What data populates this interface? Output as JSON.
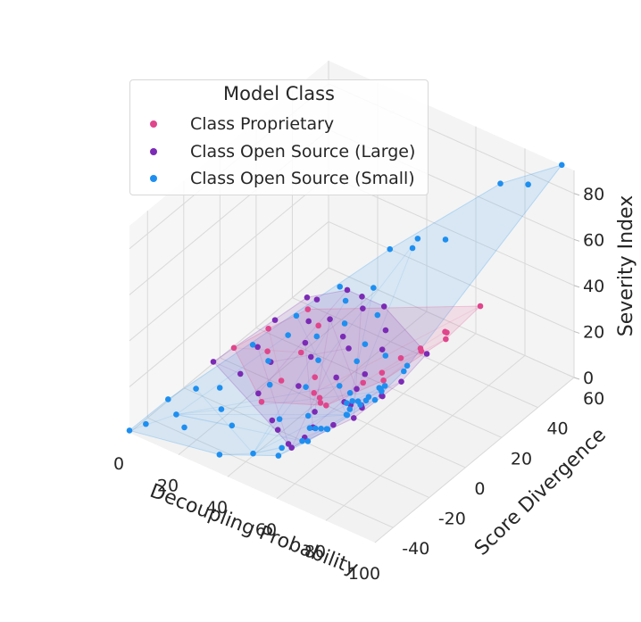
{
  "chart_data": {
    "type": "scatter3d",
    "title": "",
    "xlabel": "Decoupling Probability",
    "ylabel": "Score Divergence",
    "zlabel": "Severity Index",
    "xlim": [
      0,
      100
    ],
    "ylim": [
      -50,
      60
    ],
    "zlim": [
      0,
      90
    ],
    "xticks": [
      0,
      20,
      40,
      60,
      80,
      100
    ],
    "yticks": [
      -40,
      -20,
      0,
      20,
      40,
      60
    ],
    "zticks": [
      0,
      20,
      40,
      60,
      80
    ],
    "grid": true,
    "legend": {
      "title": "Model Class",
      "placement": "top-left",
      "entries": [
        "Class Proprietary",
        "Class Open Source (Large)",
        "Class Open Source (Small)"
      ]
    },
    "series": [
      {
        "name": "Class Proprietary",
        "color": "#e0468c",
        "hull": true,
        "points": [
          [
            2,
            5,
            2
          ],
          [
            5,
            20,
            2
          ],
          [
            10,
            35,
            3
          ],
          [
            12,
            10,
            2
          ],
          [
            18,
            30,
            3
          ],
          [
            22,
            15,
            3
          ],
          [
            25,
            0,
            2
          ],
          [
            28,
            -15,
            4
          ],
          [
            35,
            5,
            5
          ],
          [
            42,
            -5,
            8
          ],
          [
            48,
            -10,
            12
          ],
          [
            52,
            -15,
            15
          ],
          [
            58,
            -20,
            20
          ],
          [
            62,
            -5,
            22
          ],
          [
            66,
            0,
            25
          ],
          [
            70,
            5,
            30
          ],
          [
            74,
            -10,
            32
          ],
          [
            78,
            5,
            38
          ],
          [
            82,
            0,
            42
          ],
          [
            85,
            10,
            45
          ],
          [
            88,
            5,
            50
          ],
          [
            92,
            0,
            52
          ],
          [
            95,
            15,
            58
          ]
        ]
      },
      {
        "name": "Class Open Source (Large)",
        "color": "#7b2bb5",
        "hull": true,
        "points": [
          [
            1,
            -5,
            2
          ],
          [
            4,
            25,
            2
          ],
          [
            6,
            40,
            3
          ],
          [
            8,
            10,
            2
          ],
          [
            10,
            40,
            4
          ],
          [
            12,
            -5,
            2
          ],
          [
            14,
            30,
            3
          ],
          [
            15,
            50,
            4
          ],
          [
            17,
            5,
            3
          ],
          [
            19,
            35,
            3
          ],
          [
            20,
            20,
            3
          ],
          [
            21,
            50,
            4
          ],
          [
            23,
            -10,
            2
          ],
          [
            25,
            45,
            4
          ],
          [
            26,
            15,
            3
          ],
          [
            28,
            30,
            3
          ],
          [
            30,
            50,
            4
          ],
          [
            32,
            0,
            3
          ],
          [
            34,
            25,
            4
          ],
          [
            36,
            -20,
            3
          ],
          [
            38,
            40,
            4
          ],
          [
            40,
            10,
            4
          ],
          [
            42,
            -25,
            5
          ],
          [
            44,
            30,
            5
          ],
          [
            46,
            -10,
            5
          ],
          [
            48,
            15,
            6
          ],
          [
            50,
            -30,
            6
          ],
          [
            52,
            5,
            8
          ],
          [
            55,
            -35,
            10
          ],
          [
            58,
            -10,
            15
          ],
          [
            60,
            -30,
            18
          ],
          [
            64,
            -40,
            22
          ],
          [
            68,
            -20,
            25
          ],
          [
            72,
            -35,
            28
          ],
          [
            76,
            -25,
            32
          ],
          [
            80,
            -30,
            36
          ],
          [
            84,
            -40,
            40
          ],
          [
            88,
            -30,
            45
          ],
          [
            92,
            -35,
            50
          ],
          [
            96,
            -30,
            55
          ],
          [
            99,
            -20,
            62
          ]
        ]
      },
      {
        "name": "Class Open Source (Small)",
        "color": "#1e8ff0",
        "hull": true,
        "points": [
          [
            0,
            -50,
            1
          ],
          [
            1,
            -30,
            2
          ],
          [
            3,
            -45,
            2
          ],
          [
            5,
            -20,
            2
          ],
          [
            6,
            10,
            2
          ],
          [
            8,
            -35,
            2
          ],
          [
            9,
            30,
            3
          ],
          [
            11,
            -15,
            2
          ],
          [
            12,
            50,
            4
          ],
          [
            13,
            20,
            3
          ],
          [
            15,
            -40,
            3
          ],
          [
            16,
            5,
            3
          ],
          [
            18,
            45,
            4
          ],
          [
            19,
            -25,
            3
          ],
          [
            21,
            25,
            3
          ],
          [
            22,
            55,
            5
          ],
          [
            24,
            -5,
            3
          ],
          [
            25,
            35,
            4
          ],
          [
            27,
            -30,
            3
          ],
          [
            29,
            15,
            3
          ],
          [
            31,
            45,
            4
          ],
          [
            33,
            -45,
            3
          ],
          [
            35,
            0,
            4
          ],
          [
            37,
            30,
            4
          ],
          [
            39,
            -20,
            5
          ],
          [
            41,
            20,
            5
          ],
          [
            43,
            -40,
            5
          ],
          [
            45,
            5,
            6
          ],
          [
            47,
            -15,
            7
          ],
          [
            49,
            25,
            8
          ],
          [
            51,
            -35,
            8
          ],
          [
            53,
            0,
            10
          ],
          [
            55,
            -25,
            12
          ],
          [
            57,
            -45,
            14
          ],
          [
            59,
            -10,
            15
          ],
          [
            61,
            -30,
            18
          ],
          [
            63,
            -40,
            20
          ],
          [
            65,
            -15,
            22
          ],
          [
            67,
            -35,
            24
          ],
          [
            69,
            -45,
            26
          ],
          [
            71,
            -20,
            28
          ],
          [
            73,
            -40,
            30
          ],
          [
            75,
            -30,
            33
          ],
          [
            77,
            -45,
            35
          ],
          [
            79,
            -25,
            37
          ],
          [
            81,
            -40,
            40
          ],
          [
            83,
            -35,
            42
          ],
          [
            85,
            -45,
            45
          ],
          [
            87,
            -30,
            48
          ],
          [
            89,
            -40,
            50
          ],
          [
            91,
            -20,
            53
          ],
          [
            93,
            -35,
            55
          ],
          [
            95,
            -40,
            58
          ],
          [
            97,
            -30,
            60
          ],
          [
            99,
            -45,
            62
          ],
          [
            100,
            -50,
            62
          ],
          [
            25,
            60,
            20
          ],
          [
            40,
            55,
            35
          ],
          [
            55,
            50,
            45
          ],
          [
            70,
            60,
            70
          ],
          [
            60,
            25,
            60
          ],
          [
            85,
            55,
            80
          ],
          [
            95,
            60,
            90
          ]
        ]
      }
    ]
  }
}
